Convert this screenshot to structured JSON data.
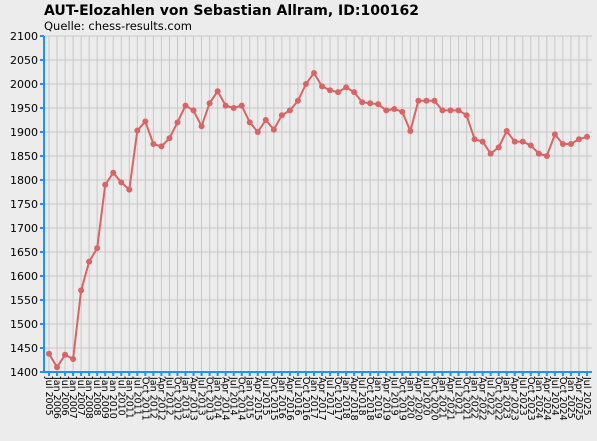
{
  "chart_data": {
    "type": "line",
    "title": "AUT-Elozahlen von Sebastian Allram, ID:100162",
    "subtitle": "Quelle: chess-results.com",
    "categories": [
      "Jul 2005",
      "Jan 2006",
      "Jul 2006",
      "Jan 2007",
      "Jul 2007",
      "Jan 2008",
      "Jul 2008",
      "Jan 2009",
      "Jan 2010",
      "Jul 2010",
      "Jan 2011",
      "Jul 2011",
      "Oct 2011",
      "Jan 2012",
      "Apr 2012",
      "Jul 2012",
      "Oct 2012",
      "Jan 2013",
      "Apr 2013",
      "Jul 2013",
      "Oct 2013",
      "Jan 2014",
      "Apr 2014",
      "Jul 2014",
      "Oct 2014",
      "Jan 2015",
      "Apr 2015",
      "Jul 2015",
      "Oct 2015",
      "Jan 2016",
      "Apr 2016",
      "Jul 2016",
      "Oct 2016",
      "Jan 2017",
      "Apr 2017",
      "Jul 2017",
      "Oct 2017",
      "Jan 2018",
      "Apr 2018",
      "Jul 2018",
      "Oct 2018",
      "Jan 2019",
      "Apr 2019",
      "Jul 2019",
      "Oct 2019",
      "Jan 2020",
      "Apr 2020",
      "Jul 2020",
      "Oct 2020",
      "Jan 2021",
      "Apr 2021",
      "Jul 2021",
      "Oct 2021",
      "Jan 2022",
      "Apr 2022",
      "Jul 2022",
      "Oct 2022",
      "Jan 2023",
      "Apr 2023",
      "Jul 2023",
      "Oct 2023",
      "Jan 2024",
      "Apr 2024",
      "Jul 2024",
      "Oct 2024",
      "Jan 2025",
      "Apr 2025",
      "Jul 2025"
    ],
    "values": [
      1438,
      1410,
      1436,
      1427,
      1570,
      1630,
      1658,
      1790,
      1815,
      1795,
      1780,
      1903,
      1922,
      1875,
      1870,
      1887,
      1920,
      1955,
      1945,
      1912,
      1960,
      1985,
      1955,
      1950,
      1955,
      1920,
      1900,
      1925,
      1905,
      1935,
      1945,
      1965,
      2000,
      2023,
      1995,
      1987,
      1983,
      1993,
      1983,
      1962,
      1960,
      1958,
      1945,
      1948,
      1942,
      1902,
      1965,
      1965,
      1965,
      1945,
      1945,
      1945,
      1935,
      1885,
      1880,
      1855,
      1868,
      1902,
      1880,
      1880,
      1872,
      1855,
      1850,
      1895,
      1875,
      1875,
      1885,
      1890
    ],
    "color": "#d96464",
    "ylim": [
      1400,
      2100
    ],
    "yticks": [
      1400,
      1450,
      1500,
      1550,
      1600,
      1650,
      1700,
      1750,
      1800,
      1850,
      1900,
      1950,
      2000,
      2050,
      2100
    ],
    "grid": true
  }
}
